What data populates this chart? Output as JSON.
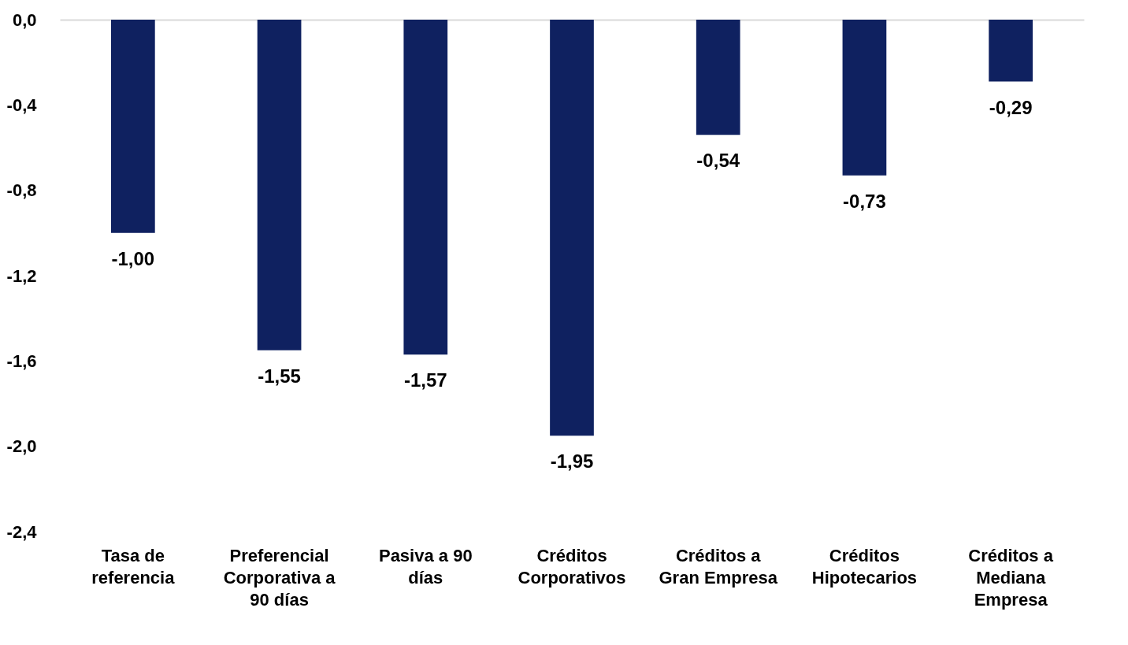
{
  "chart_data": {
    "type": "bar",
    "categories": [
      "Tasa de referencia",
      "Preferencial Corporativa a 90 días",
      "Pasiva a 90 días",
      "Créditos Corporativos",
      "Créditos a Gran Empresa",
      "Créditos Hipotecarios",
      "Créditos a Mediana Empresa"
    ],
    "values": [
      -1.0,
      -1.55,
      -1.57,
      -1.95,
      -0.54,
      -0.73,
      -0.29
    ],
    "value_labels": [
      "-1,00",
      "-1,55",
      "-1,57",
      "-1,95",
      "-0,54",
      "-0,73",
      "-0,29"
    ],
    "color": "#0f2160",
    "ylim": [
      -2.4,
      0
    ],
    "yticks": [
      {
        "value": 0,
        "label": "0,0"
      },
      {
        "value": -0.4,
        "label": "-0,4"
      },
      {
        "value": -0.8,
        "label": "-0,8"
      },
      {
        "value": -1.2,
        "label": "-1,2"
      },
      {
        "value": -1.6,
        "label": "-1,6"
      },
      {
        "value": -2.0,
        "label": "-2,0"
      },
      {
        "value": -2.4,
        "label": "-2,4"
      }
    ],
    "grid": false
  }
}
